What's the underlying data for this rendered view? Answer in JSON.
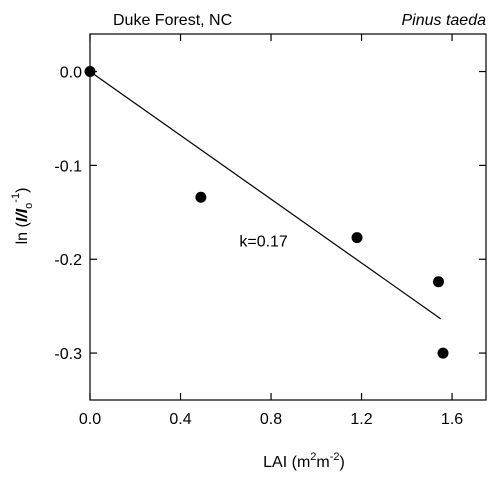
{
  "chart_data": {
    "type": "scatter",
    "title_left": "Duke Forest, NC",
    "title_right": "Pinus taeda",
    "xlabel": {
      "base": "LAI (m",
      "sup1": "2",
      "mid": "m",
      "sup2": "-2",
      "end": ")"
    },
    "ylabel": {
      "prefix": "ln (",
      "italic": "I/I",
      "sub": "o",
      "sup": "-1",
      "suffix": ")"
    },
    "xlim": [
      0.0,
      1.75
    ],
    "ylim": [
      -0.35,
      0.04
    ],
    "xticks": [
      0.0,
      0.4,
      0.8,
      1.2,
      1.6
    ],
    "xtick_labels": [
      "0.0",
      "0.4",
      "0.8",
      "1.2",
      "1.6"
    ],
    "yticks": [
      0.0,
      -0.1,
      -0.2,
      -0.3
    ],
    "ytick_labels": [
      "0.0",
      "-0.1",
      "-0.2",
      "-0.3"
    ],
    "points": [
      {
        "x": 0.0,
        "y": 0.0
      },
      {
        "x": 0.49,
        "y": -0.134
      },
      {
        "x": 1.18,
        "y": -0.177
      },
      {
        "x": 1.54,
        "y": -0.224
      },
      {
        "x": 1.56,
        "y": -0.3
      }
    ],
    "fit_line": {
      "x": [
        0.0,
        1.55
      ],
      "y": [
        0.0,
        -0.2635
      ]
    },
    "annotation": {
      "text": "k=0.17",
      "x": 0.66,
      "y": -0.18
    },
    "grid": false,
    "legend": "none"
  }
}
